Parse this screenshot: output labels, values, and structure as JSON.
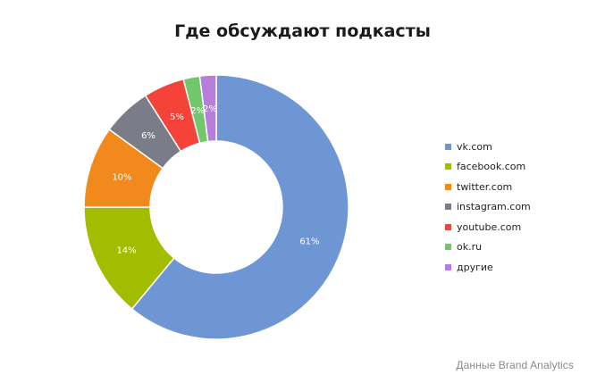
{
  "chart_data": {
    "type": "pie",
    "donut": true,
    "title": "Где обсуждают подкасты",
    "categories": [
      "vk.com",
      "facebook.com",
      "twitter.com",
      "instagram.com",
      "youtube.com",
      "ok.ru",
      "другие"
    ],
    "values": [
      61,
      14,
      10,
      6,
      5,
      2,
      2
    ],
    "value_labels": [
      "61%",
      "14%",
      "10%",
      "6%",
      "5%",
      "2%",
      "2%"
    ],
    "colors": [
      "#6f96d4",
      "#a2bd00",
      "#f2891c",
      "#7a7c88",
      "#f5433a",
      "#72c66b",
      "#b67ddb"
    ],
    "legend_position": "right"
  },
  "source_note": "Данные Brand Analytics"
}
